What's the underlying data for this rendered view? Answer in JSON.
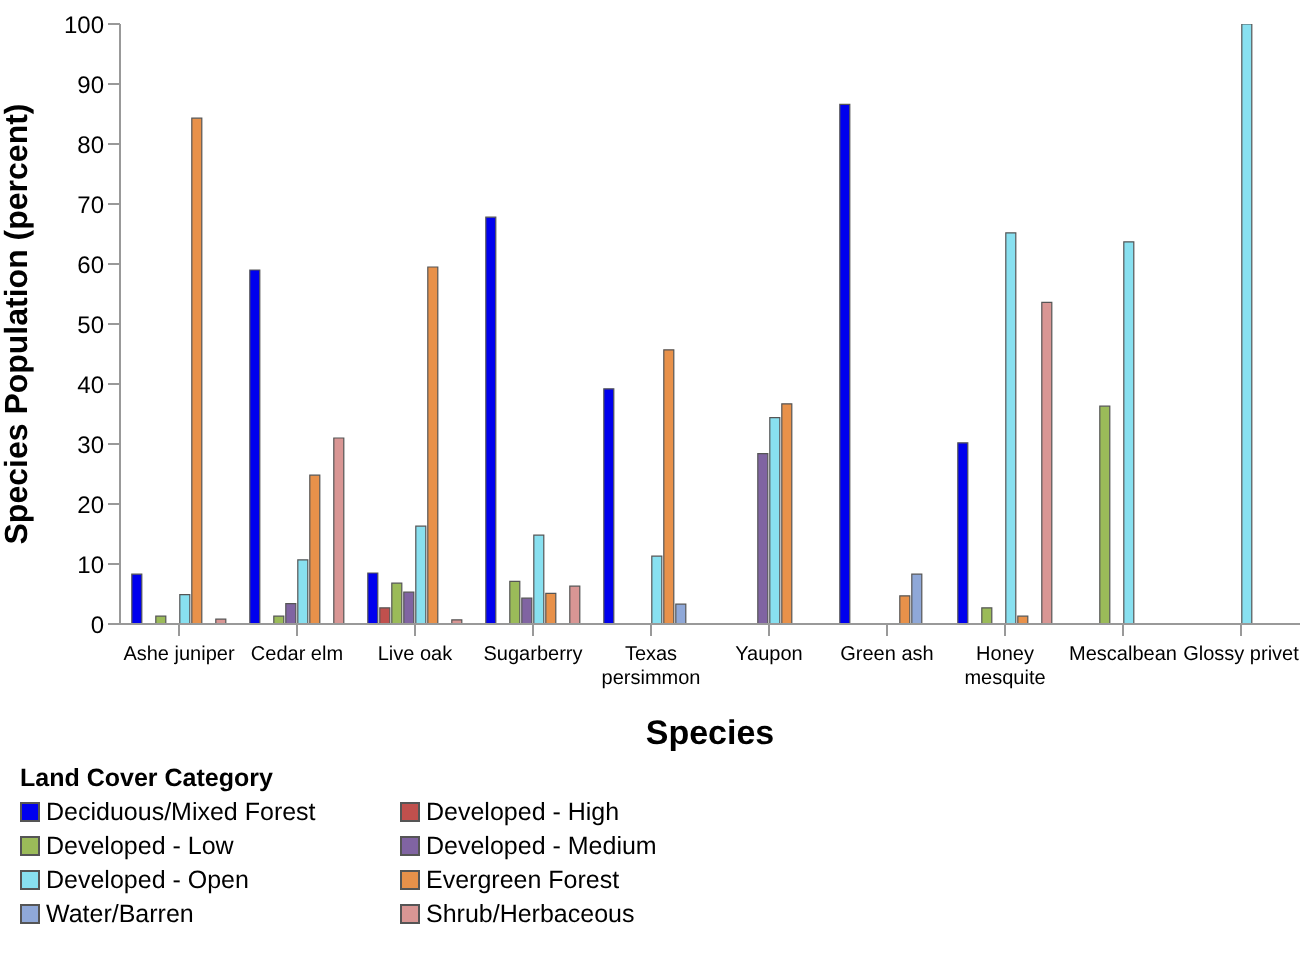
{
  "chart_data": {
    "type": "bar",
    "xlabel": "Species",
    "ylabel": "Species Population (percent)",
    "legend_title": "Land Cover Category",
    "categories": [
      "Ashe juniper",
      "Cedar elm",
      "Live oak",
      "Sugarberry",
      "Texas persimmon",
      "Yaupon",
      "Green ash",
      "Honey mesquite",
      "Mescalbean",
      "Glossy privet"
    ],
    "series": [
      {
        "name": "Deciduous/Mixed Forest",
        "color": "#0000ee",
        "values": [
          8.3,
          59.0,
          8.5,
          67.8,
          39.2,
          null,
          86.6,
          30.2,
          null,
          null
        ]
      },
      {
        "name": "Developed - High",
        "color": "#c0504d",
        "values": [
          null,
          null,
          2.7,
          null,
          null,
          null,
          null,
          null,
          null,
          null
        ]
      },
      {
        "name": "Developed - Low",
        "color": "#9bbb59",
        "values": [
          1.3,
          1.3,
          6.8,
          7.1,
          null,
          null,
          null,
          2.7,
          36.3,
          null
        ]
      },
      {
        "name": "Developed - Medium",
        "color": "#8064a2",
        "values": [
          null,
          3.4,
          5.3,
          4.3,
          null,
          28.4,
          null,
          null,
          null,
          null
        ]
      },
      {
        "name": "Developed - Open",
        "color": "#88e0f0",
        "values": [
          4.9,
          10.7,
          16.3,
          14.8,
          11.3,
          34.4,
          null,
          65.2,
          63.7,
          100
        ]
      },
      {
        "name": "Evergreen Forest",
        "color": "#e8914a",
        "values": [
          84.3,
          24.8,
          59.5,
          5.1,
          45.7,
          36.7,
          4.7,
          1.3,
          null,
          null
        ]
      },
      {
        "name": "Water/Barren",
        "color": "#8fa8d8",
        "values": [
          null,
          null,
          null,
          null,
          3.3,
          null,
          8.3,
          null,
          null,
          null
        ]
      },
      {
        "name": "Shrub/Herbaceous",
        "color": "#d99694",
        "values": [
          0.8,
          31.0,
          0.7,
          6.3,
          null,
          null,
          null,
          53.6,
          null,
          null
        ]
      }
    ],
    "ylim": [
      0,
      100
    ],
    "yticks": [
      0,
      10,
      20,
      30,
      40,
      50,
      60,
      70,
      80,
      90,
      100
    ],
    "grid": false,
    "legend": "bottom"
  }
}
